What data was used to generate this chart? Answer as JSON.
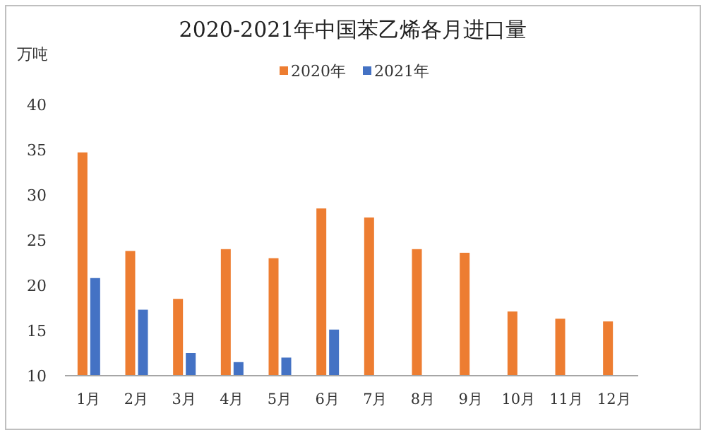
{
  "chart_data": {
    "type": "bar",
    "title": "2020-2021年中国苯乙烯各月进口量",
    "ylabel": "万吨",
    "categories": [
      "1月",
      "2月",
      "3月",
      "4月",
      "5月",
      "6月",
      "7月",
      "8月",
      "9月",
      "10月",
      "11月",
      "12月"
    ],
    "series": [
      {
        "name": "2020年",
        "color": "#ed7d31",
        "values": [
          34.7,
          23.8,
          18.5,
          24.0,
          23.0,
          28.5,
          27.5,
          24.0,
          23.6,
          17.1,
          16.3,
          16.0
        ]
      },
      {
        "name": "2021年",
        "color": "#4472c4",
        "values": [
          20.8,
          17.3,
          12.5,
          11.5,
          12.0,
          15.1,
          null,
          null,
          null,
          null,
          null,
          null
        ]
      }
    ],
    "ylim": [
      10,
      40
    ],
    "yticks": [
      10,
      15,
      20,
      25,
      30,
      35,
      40
    ],
    "grid": false,
    "legend": "top"
  }
}
